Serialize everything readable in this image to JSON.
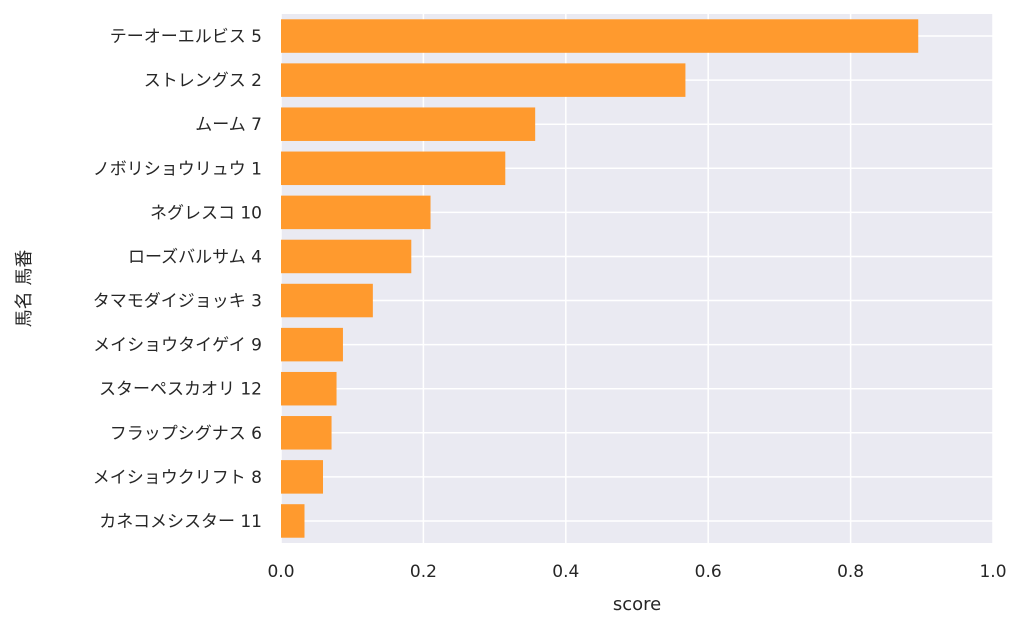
{
  "chart_data": {
    "type": "bar",
    "orientation": "horizontal",
    "title": "",
    "xlabel": "score",
    "ylabel": "馬名 馬番",
    "xlim": [
      0.0,
      1.0
    ],
    "xticks": [
      "0.0",
      "0.2",
      "0.4",
      "0.6",
      "0.8",
      "1.0"
    ],
    "grid": true,
    "bar_color": "#ff9a2e",
    "background_color": "#eaeaf2",
    "categories": [
      "テーオーエルビス 5",
      "ストレングス 2",
      "ムーム 7",
      "ノボリショウリュウ 1",
      "ネグレスコ 10",
      "ローズバルサム 4",
      "タマモダイジョッキ 3",
      "メイショウタイゲイ 9",
      "スターペスカオリ 12",
      "フラップシグナス 6",
      "メイショウクリフト 8",
      "カネコメシスター 11"
    ],
    "values": [
      0.895,
      0.568,
      0.357,
      0.315,
      0.21,
      0.183,
      0.129,
      0.087,
      0.078,
      0.071,
      0.059,
      0.033
    ]
  }
}
